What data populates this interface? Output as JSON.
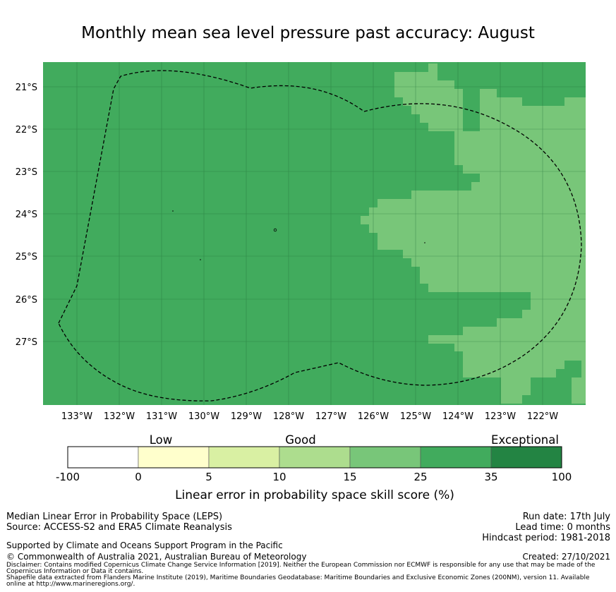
{
  "title": "Monthly mean sea level pressure past accuracy: August",
  "map": {
    "lon_labels": [
      "133°W",
      "132°W",
      "131°W",
      "130°W",
      "129°W",
      "128°W",
      "127°W",
      "126°W",
      "125°W",
      "124°W",
      "123°W",
      "122°W"
    ],
    "lat_labels": [
      "21°S",
      "22°S",
      "23°S",
      "24°S",
      "25°S",
      "26°S",
      "27°S"
    ],
    "colors": {
      "class_25_35": "#41ab5d",
      "class_15_25": "#78c679",
      "class_35_100": "#238443"
    }
  },
  "colorbar": {
    "category_labels": {
      "low": "Low",
      "good": "Good",
      "exceptional": "Exceptional"
    },
    "ticks": [
      "-100",
      "0",
      "5",
      "10",
      "15",
      "25",
      "35",
      "100"
    ],
    "colors": [
      "#ffffff",
      "#ffffcc",
      "#d9f0a3",
      "#addd8e",
      "#78c679",
      "#41ab5d",
      "#238443"
    ],
    "title": "Linear error in probability space skill score (%)"
  },
  "footer": {
    "method": "Median Linear Error in Probability Space (LEPS)",
    "source": "Source: ACCESS-S2 and ERA5 Climate Reanalysis",
    "support": "Supported by Climate and Oceans Support Program in the Pacific",
    "copyright": "© Commonwealth of Australia 2021, Australian Bureau of Meteorology",
    "run_date": "Run date: 17th July",
    "lead_time": "Lead time: 0 months",
    "hindcast": "Hindcast period: 1981-2018",
    "created": "Created: 27/10/2021",
    "disclaimer_1": "Disclaimer: Contains modified Copernicus Climate Change Service Information [2019]. Neither the European Commission nor ECMWF is responsible for any use that may be made of the",
    "disclaimer_2": "Copernicus Information or Data it contains.",
    "disclaimer_3": "Shapefile data extracted from Flanders Marine Institute (2019), Maritime Boundaries Geodatabase: Maritime Boundaries and Exclusive Economic Zones (200NM), version 11. Available",
    "disclaimer_4": "online at http://www.marineregions.org/."
  }
}
